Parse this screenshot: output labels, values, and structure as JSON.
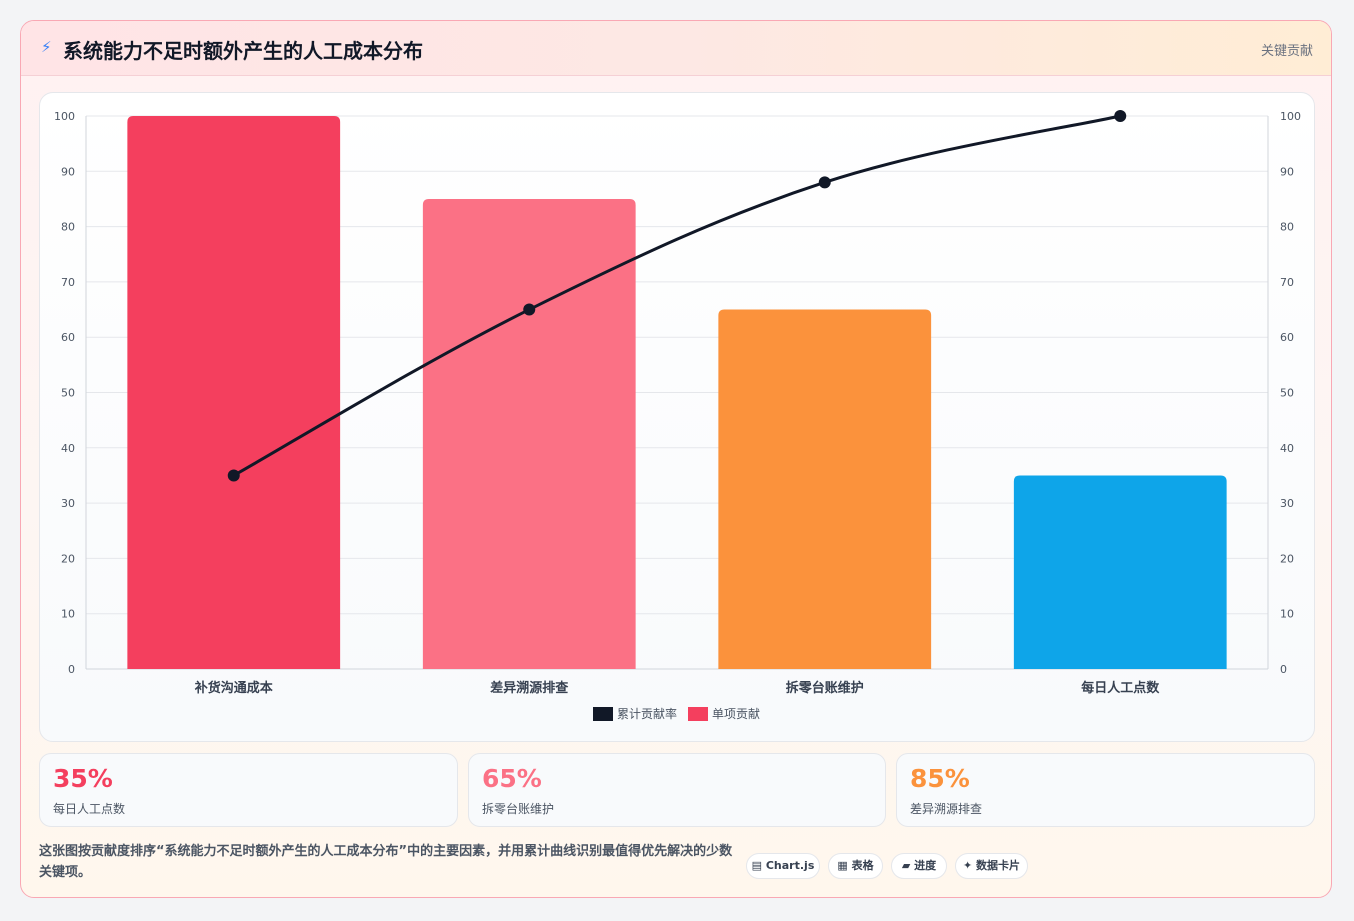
{
  "header": {
    "icon": "lightning-icon",
    "title": "系统能力不足时额外产生的人工成本分布",
    "badge": "关键贡献"
  },
  "chart_data": {
    "type": "bar",
    "categories": [
      "补货沟通成本",
      "差异溯源排查",
      "拆零台账维护",
      "每日人工点数"
    ],
    "series": [
      {
        "name": "单项贡献",
        "type": "bar",
        "values": [
          100,
          85,
          65,
          35
        ],
        "colors": [
          "#f43f5e",
          "#fb7185",
          "#fb923c",
          "#0ea5e9"
        ]
      },
      {
        "name": "累计贡献率",
        "type": "line",
        "values": [
          35,
          65,
          88,
          100
        ],
        "color": "#111827"
      }
    ],
    "ylim": [
      0,
      100
    ],
    "y_ticks": [
      0,
      10,
      20,
      30,
      40,
      50,
      60,
      70,
      80,
      90,
      100
    ],
    "legend": [
      "累计贡献率",
      "单项贡献"
    ],
    "legend_position": "bottom",
    "grid": true
  },
  "stats": [
    {
      "value": "35%",
      "label": "每日人工点数",
      "color": "#f43f5e"
    },
    {
      "value": "65%",
      "label": "拆零台账维护",
      "color": "#fb7185"
    },
    {
      "value": "85%",
      "label": "差异溯源排查",
      "color": "#fb923c"
    }
  ],
  "footer": {
    "description": "这张图按贡献度排序“系统能力不足时额外产生的人工成本分布”中的主要因素，并用累计曲线识别最值得优先解决的少数关键项。",
    "chips": [
      {
        "icon": "chart-icon",
        "glyph": "▤",
        "label": "Chart.js"
      },
      {
        "icon": "table-icon",
        "glyph": "▦",
        "label": "表格"
      },
      {
        "icon": "progress-icon",
        "glyph": "▰",
        "label": "进度"
      },
      {
        "icon": "sparkle-icon",
        "glyph": "✦",
        "label": "数据卡片"
      }
    ]
  }
}
